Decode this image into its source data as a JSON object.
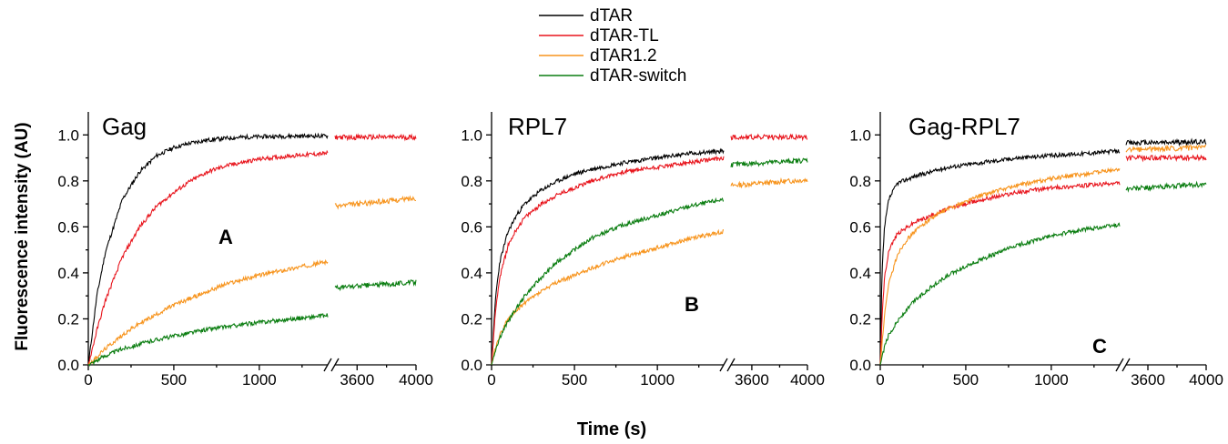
{
  "figure": {
    "xlabel": "Time (s)",
    "ylabel": "Fluorescence intensity (AU)"
  },
  "legend": {
    "placement": "top-center",
    "entries": [
      {
        "name": "dTAR",
        "color": "#000000"
      },
      {
        "name": "dTAR-TL",
        "color": "#e8141c"
      },
      {
        "name": "dTAR1.2",
        "color": "#f7941d"
      },
      {
        "name": "dTAR-switch",
        "color": "#0a7d10"
      }
    ]
  },
  "chart_data": [
    {
      "type": "line",
      "title": "Gag",
      "panel_label": "A",
      "xlim_main": [
        0,
        1400
      ],
      "xlim_break": [
        3450,
        4000
      ],
      "xticks_main": [
        "0",
        "500",
        "1000"
      ],
      "xticks_break": [
        "3600",
        "4000"
      ],
      "ylim": [
        0,
        1.1
      ],
      "yticks": [
        "0.0",
        "0.2",
        "0.4",
        "0.6",
        "0.8",
        "1.0"
      ],
      "series": [
        {
          "name": "dTAR",
          "color": "#000000",
          "x": [
            0,
            50,
            100,
            200,
            300,
            400,
            500,
            600,
            700,
            800,
            900,
            1000,
            1200,
            1400
          ],
          "y": [
            0,
            0.3,
            0.49,
            0.72,
            0.84,
            0.91,
            0.945,
            0.965,
            0.978,
            0.985,
            0.99,
            0.992,
            0.995,
            0.995
          ],
          "x_break": [],
          "y_break": []
        },
        {
          "name": "dTAR-TL",
          "color": "#e8141c",
          "x": [
            0,
            50,
            100,
            200,
            300,
            400,
            500,
            600,
            700,
            800,
            900,
            1000,
            1200,
            1400
          ],
          "y": [
            0,
            0.15,
            0.28,
            0.47,
            0.6,
            0.69,
            0.75,
            0.8,
            0.84,
            0.865,
            0.88,
            0.895,
            0.91,
            0.92
          ],
          "x_break": [
            3450,
            4000
          ],
          "y_break": [
            0.99,
            0.99
          ]
        },
        {
          "name": "dTAR1.2",
          "color": "#f7941d",
          "x": [
            0,
            100,
            200,
            300,
            400,
            500,
            600,
            700,
            800,
            900,
            1000,
            1200,
            1400
          ],
          "y": [
            0,
            0.07,
            0.13,
            0.18,
            0.22,
            0.26,
            0.29,
            0.32,
            0.35,
            0.37,
            0.39,
            0.42,
            0.45
          ],
          "x_break": [
            3450,
            4000
          ],
          "y_break": [
            0.69,
            0.725
          ]
        },
        {
          "name": "dTAR-switch",
          "color": "#0a7d10",
          "x": [
            0,
            100,
            200,
            300,
            400,
            500,
            600,
            700,
            800,
            900,
            1000,
            1200,
            1400
          ],
          "y": [
            0,
            0.04,
            0.07,
            0.09,
            0.11,
            0.125,
            0.14,
            0.155,
            0.165,
            0.175,
            0.185,
            0.2,
            0.215
          ],
          "x_break": [
            3450,
            4000
          ],
          "y_break": [
            0.335,
            0.36
          ]
        }
      ]
    },
    {
      "type": "line",
      "title": "RPL7",
      "panel_label": "B",
      "xlim_main": [
        0,
        1400
      ],
      "xlim_break": [
        3450,
        4000
      ],
      "xticks_main": [
        "0",
        "500",
        "1000"
      ],
      "xticks_break": [
        "3600",
        "4000"
      ],
      "ylim": [
        0,
        1.1
      ],
      "yticks": [
        "0.0",
        "0.2",
        "0.4",
        "0.6",
        "0.8",
        "1.0"
      ],
      "series": [
        {
          "name": "dTAR",
          "color": "#000000",
          "x": [
            0,
            25,
            50,
            100,
            150,
            200,
            300,
            400,
            500,
            600,
            800,
            1000,
            1200,
            1400
          ],
          "y": [
            0,
            0.3,
            0.45,
            0.58,
            0.65,
            0.7,
            0.76,
            0.8,
            0.83,
            0.85,
            0.88,
            0.9,
            0.92,
            0.93
          ],
          "x_break": [],
          "y_break": []
        },
        {
          "name": "dTAR-TL",
          "color": "#e8141c",
          "x": [
            0,
            25,
            50,
            100,
            150,
            200,
            300,
            400,
            500,
            600,
            800,
            1000,
            1200,
            1400
          ],
          "y": [
            0,
            0.25,
            0.38,
            0.52,
            0.59,
            0.64,
            0.7,
            0.74,
            0.77,
            0.8,
            0.84,
            0.86,
            0.88,
            0.9
          ],
          "x_break": [
            3450,
            4000
          ],
          "y_break": [
            0.99,
            0.99
          ]
        },
        {
          "name": "dTAR1.2",
          "color": "#f7941d",
          "x": [
            0,
            25,
            50,
            100,
            200,
            300,
            400,
            500,
            600,
            800,
            1000,
            1200,
            1400
          ],
          "y": [
            0,
            0.08,
            0.13,
            0.2,
            0.27,
            0.32,
            0.36,
            0.39,
            0.42,
            0.47,
            0.51,
            0.55,
            0.58
          ],
          "x_break": [
            3450,
            4000
          ],
          "y_break": [
            0.78,
            0.805
          ]
        },
        {
          "name": "dTAR-switch",
          "color": "#0a7d10",
          "x": [
            0,
            25,
            50,
            100,
            200,
            300,
            400,
            500,
            600,
            800,
            1000,
            1200,
            1400
          ],
          "y": [
            0,
            0.07,
            0.12,
            0.19,
            0.3,
            0.38,
            0.45,
            0.5,
            0.55,
            0.61,
            0.65,
            0.69,
            0.72
          ],
          "x_break": [
            3450,
            4000
          ],
          "y_break": [
            0.87,
            0.89
          ]
        }
      ]
    },
    {
      "type": "line",
      "title": "Gag-RPL7",
      "panel_label": "C",
      "xlim_main": [
        0,
        1400
      ],
      "xlim_break": [
        3450,
        4000
      ],
      "xticks_main": [
        "0",
        "500",
        "1000"
      ],
      "xticks_break": [
        "3600",
        "4000"
      ],
      "ylim": [
        0,
        1.1
      ],
      "yticks": [
        "0.0",
        "0.2",
        "0.4",
        "0.6",
        "0.8",
        "1.0"
      ],
      "series": [
        {
          "name": "dTAR",
          "color": "#000000",
          "x": [
            0,
            10,
            25,
            50,
            100,
            200,
            300,
            400,
            500,
            600,
            800,
            1000,
            1200,
            1400
          ],
          "y": [
            0,
            0.4,
            0.6,
            0.72,
            0.79,
            0.82,
            0.84,
            0.86,
            0.87,
            0.88,
            0.9,
            0.91,
            0.92,
            0.93
          ],
          "x_break": [
            3450,
            4000
          ],
          "y_break": [
            0.965,
            0.97
          ]
        },
        {
          "name": "dTAR-TL",
          "color": "#e8141c",
          "x": [
            0,
            10,
            25,
            50,
            100,
            200,
            300,
            400,
            500,
            600,
            800,
            1000,
            1200,
            1400
          ],
          "y": [
            0,
            0.2,
            0.38,
            0.5,
            0.57,
            0.62,
            0.65,
            0.68,
            0.7,
            0.72,
            0.75,
            0.77,
            0.78,
            0.79
          ],
          "x_break": [
            3450,
            4000
          ],
          "y_break": [
            0.9,
            0.9
          ]
        },
        {
          "name": "dTAR1.2",
          "color": "#f7941d",
          "x": [
            0,
            25,
            50,
            100,
            150,
            200,
            300,
            400,
            500,
            600,
            800,
            1000,
            1200,
            1400
          ],
          "y": [
            0,
            0.22,
            0.35,
            0.48,
            0.54,
            0.58,
            0.64,
            0.68,
            0.71,
            0.74,
            0.78,
            0.81,
            0.83,
            0.85
          ],
          "x_break": [
            3450,
            4000
          ],
          "y_break": [
            0.935,
            0.945
          ]
        },
        {
          "name": "dTAR-switch",
          "color": "#0a7d10",
          "x": [
            0,
            25,
            50,
            100,
            200,
            300,
            400,
            500,
            600,
            800,
            1000,
            1200,
            1400
          ],
          "y": [
            0,
            0.08,
            0.13,
            0.19,
            0.28,
            0.34,
            0.39,
            0.43,
            0.46,
            0.52,
            0.56,
            0.59,
            0.61
          ],
          "x_break": [
            3450,
            4000
          ],
          "y_break": [
            0.765,
            0.785
          ]
        }
      ]
    }
  ]
}
